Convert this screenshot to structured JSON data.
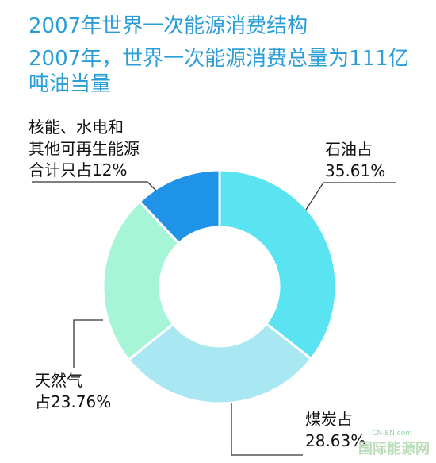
{
  "chart_data": {
    "type": "pie",
    "title": "2007年世界一次能源消费结构",
    "subtitle": "2007年，世界一次能源消费总量为111亿吨油当量",
    "slices": [
      {
        "value": 35.61,
        "color": "#5ae3f1",
        "label": [
          "石油占",
          "35.61%"
        ]
      },
      {
        "value": 28.63,
        "color": "#a9e8f2",
        "label": [
          "煤炭占",
          "28.63%"
        ]
      },
      {
        "value": 23.76,
        "color": "#a5f5d6",
        "label": [
          "天然气",
          "占23.76%"
        ]
      },
      {
        "value": 12.0,
        "color": "#1f93e8",
        "label": [
          "核能、水电和",
          "其他可再生能源",
          "合计只占12%"
        ]
      }
    ]
  },
  "watermark": {
    "top": "CN-EN.com",
    "main": "国际能源网"
  }
}
